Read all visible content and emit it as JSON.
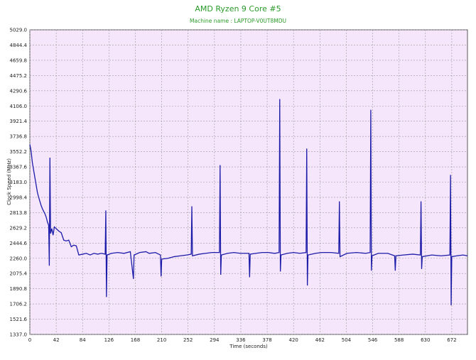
{
  "chart_data": {
    "type": "line",
    "title": "AMD Ryzen 9 Core #5",
    "subtitle": "Machine name : LAPTOP-V0UT8MDU",
    "x_label": "Time (seconds)",
    "y_label": "Clock Speed (MHz)",
    "color": "#1c1ca8",
    "grid": true,
    "xlim": [
      0,
      697
    ],
    "xticks": [
      0,
      42,
      84,
      126,
      168,
      210,
      252,
      294,
      336,
      378,
      420,
      462,
      504,
      546,
      588,
      630,
      672
    ],
    "ylim": [
      1337,
      5029
    ],
    "yticks": [
      {
        "value": 1337,
        "label": "1337.0"
      },
      {
        "value": 1521.6,
        "label": "1521.6"
      },
      {
        "value": 1706.2,
        "label": "1706.2"
      },
      {
        "value": 1890.8,
        "label": "1890.8"
      },
      {
        "value": 2075.4,
        "label": "2075.4"
      },
      {
        "value": 2260,
        "label": "2260.0"
      },
      {
        "value": 2444.6,
        "label": "2444.6"
      },
      {
        "value": 2629.2,
        "label": "2629.2"
      },
      {
        "value": 2813.8,
        "label": "2813.8"
      },
      {
        "value": 2998.4,
        "label": "2998.4"
      },
      {
        "value": 3183,
        "label": "3183.0"
      },
      {
        "value": 3367.6,
        "label": "3367.6"
      },
      {
        "value": 3552.2,
        "label": "3552.2"
      },
      {
        "value": 3736.8,
        "label": "3736.8"
      },
      {
        "value": 3921.4,
        "label": "3921.4"
      },
      {
        "value": 4106,
        "label": "4106.0"
      },
      {
        "value": 4290.6,
        "label": "4290.6"
      },
      {
        "value": 4475.2,
        "label": "4475.2"
      },
      {
        "value": 4659.8,
        "label": "4659.8"
      },
      {
        "value": 4844.4,
        "label": "4844.4"
      },
      {
        "value": 5029,
        "label": "5029.0"
      }
    ],
    "x": [
      0,
      2,
      4,
      6,
      8,
      10,
      12,
      14,
      16,
      18,
      20,
      22,
      24,
      26,
      28,
      30,
      31,
      32,
      33,
      35,
      37,
      39,
      42,
      46,
      50,
      54,
      58,
      62,
      66,
      70,
      74,
      78,
      84,
      90,
      96,
      102,
      108,
      114,
      120,
      121,
      122,
      123,
      130,
      140,
      150,
      160,
      165,
      166,
      175,
      185,
      190,
      200,
      208,
      209,
      210,
      220,
      230,
      240,
      250,
      257,
      258,
      259,
      270,
      280,
      290,
      302,
      303,
      304,
      305,
      315,
      325,
      335,
      349,
      350,
      351,
      360,
      370,
      380,
      390,
      397,
      398,
      399,
      400,
      410,
      420,
      430,
      440,
      441,
      442,
      443,
      455,
      465,
      480,
      492,
      493,
      494,
      505,
      520,
      535,
      542,
      543,
      544,
      545,
      555,
      570,
      581,
      582,
      583,
      595,
      610,
      622,
      623,
      624,
      625,
      640,
      655,
      669,
      670,
      671,
      672,
      680,
      690,
      697
    ],
    "values": [
      3640,
      3560,
      3420,
      3330,
      3240,
      3150,
      3060,
      3000,
      2950,
      2900,
      2860,
      2830,
      2800,
      2760,
      2700,
      2660,
      2170,
      3480,
      2560,
      2620,
      2540,
      2640,
      2620,
      2590,
      2570,
      2480,
      2470,
      2480,
      2400,
      2420,
      2410,
      2300,
      2310,
      2320,
      2300,
      2320,
      2310,
      2320,
      2310,
      2840,
      1790,
      2300,
      2320,
      2330,
      2320,
      2340,
      2010,
      2300,
      2330,
      2340,
      2320,
      2330,
      2300,
      2040,
      2250,
      2260,
      2280,
      2290,
      2300,
      2310,
      2890,
      2290,
      2310,
      2320,
      2330,
      2330,
      3390,
      2060,
      2300,
      2320,
      2330,
      2320,
      2320,
      2030,
      2310,
      2320,
      2330,
      2330,
      2320,
      2330,
      4190,
      2100,
      2300,
      2320,
      2330,
      2320,
      2330,
      3590,
      1930,
      2300,
      2320,
      2330,
      2330,
      2320,
      2950,
      2280,
      2320,
      2330,
      2320,
      2330,
      4060,
      2110,
      2290,
      2320,
      2320,
      2290,
      2110,
      2290,
      2300,
      2310,
      2300,
      2950,
      2130,
      2280,
      2300,
      2290,
      2300,
      3270,
      1690,
      2280,
      2290,
      2300,
      2290
    ]
  }
}
